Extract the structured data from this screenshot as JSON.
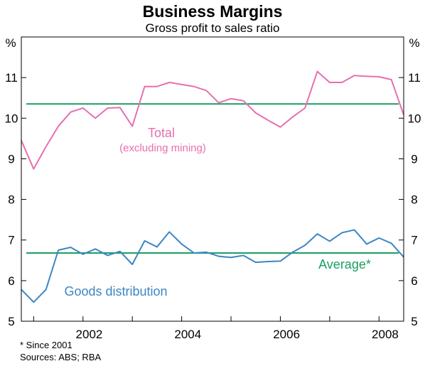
{
  "chart_data": {
    "type": "line",
    "title": "Business Margins",
    "subtitle": "Gross profit to sales ratio",
    "y_unit_left": "%",
    "y_unit_right": "%",
    "ylim": [
      5,
      12
    ],
    "y_ticks": [
      5,
      6,
      7,
      8,
      9,
      10,
      11
    ],
    "x_range": [
      2000.75,
      2008.5
    ],
    "x_ticks": [
      {
        "x": 2002.125,
        "label": "2002"
      },
      {
        "x": 2004.125,
        "label": "2004"
      },
      {
        "x": 2006.125,
        "label": "2006"
      },
      {
        "x": 2008.125,
        "label": "2008"
      }
    ],
    "grid": false,
    "series": [
      {
        "name": "Total",
        "name_sub": "(excluding mining)",
        "color": "#e86fb0",
        "x": [
          2000.75,
          2001.0,
          2001.25,
          2001.5,
          2001.75,
          2002.0,
          2002.25,
          2002.5,
          2002.75,
          2003.0,
          2003.25,
          2003.5,
          2003.75,
          2004.0,
          2004.25,
          2004.5,
          2004.75,
          2005.0,
          2005.25,
          2005.5,
          2005.75,
          2006.0,
          2006.25,
          2006.5,
          2006.75,
          2007.0,
          2007.25,
          2007.5,
          2007.75,
          2008.0,
          2008.25,
          2008.5
        ],
        "values": [
          9.45,
          8.75,
          9.3,
          9.8,
          10.15,
          10.25,
          10.0,
          10.25,
          10.26,
          9.8,
          10.78,
          10.78,
          10.88,
          10.83,
          10.78,
          10.68,
          10.38,
          10.48,
          10.43,
          10.13,
          9.95,
          9.78,
          10.03,
          10.25,
          11.15,
          10.88,
          10.88,
          11.05,
          11.03,
          11.02,
          10.95,
          10.08
        ]
      },
      {
        "name": "Goods distribution",
        "color": "#3d86c4",
        "x": [
          2000.75,
          2001.0,
          2001.25,
          2001.5,
          2001.75,
          2002.0,
          2002.25,
          2002.5,
          2002.75,
          2003.0,
          2003.25,
          2003.5,
          2003.75,
          2004.0,
          2004.25,
          2004.5,
          2004.75,
          2005.0,
          2005.25,
          2005.5,
          2005.75,
          2006.0,
          2006.25,
          2006.5,
          2006.75,
          2007.0,
          2007.25,
          2007.5,
          2007.75,
          2008.0,
          2008.25,
          2008.5
        ],
        "values": [
          5.78,
          5.47,
          5.78,
          6.75,
          6.82,
          6.65,
          6.78,
          6.62,
          6.72,
          6.4,
          6.98,
          6.83,
          7.2,
          6.9,
          6.68,
          6.7,
          6.6,
          6.57,
          6.62,
          6.45,
          6.47,
          6.48,
          6.7,
          6.87,
          7.15,
          6.97,
          7.18,
          7.25,
          6.9,
          7.05,
          6.92,
          6.58
        ]
      }
    ],
    "reference_lines": [
      {
        "name": "Average*",
        "value": 10.35,
        "color": "#1a9e62",
        "target": "Total"
      },
      {
        "name": "Average*",
        "value": 6.68,
        "color": "#1a9e62",
        "target": "Goods distribution"
      }
    ],
    "annotations": {
      "total_label": "Total",
      "total_sublabel": "(excluding mining)",
      "goods_label": "Goods distribution",
      "average_label": "Average*"
    },
    "footnote": "*   Since 2001",
    "source": "Sources: ABS; RBA"
  }
}
